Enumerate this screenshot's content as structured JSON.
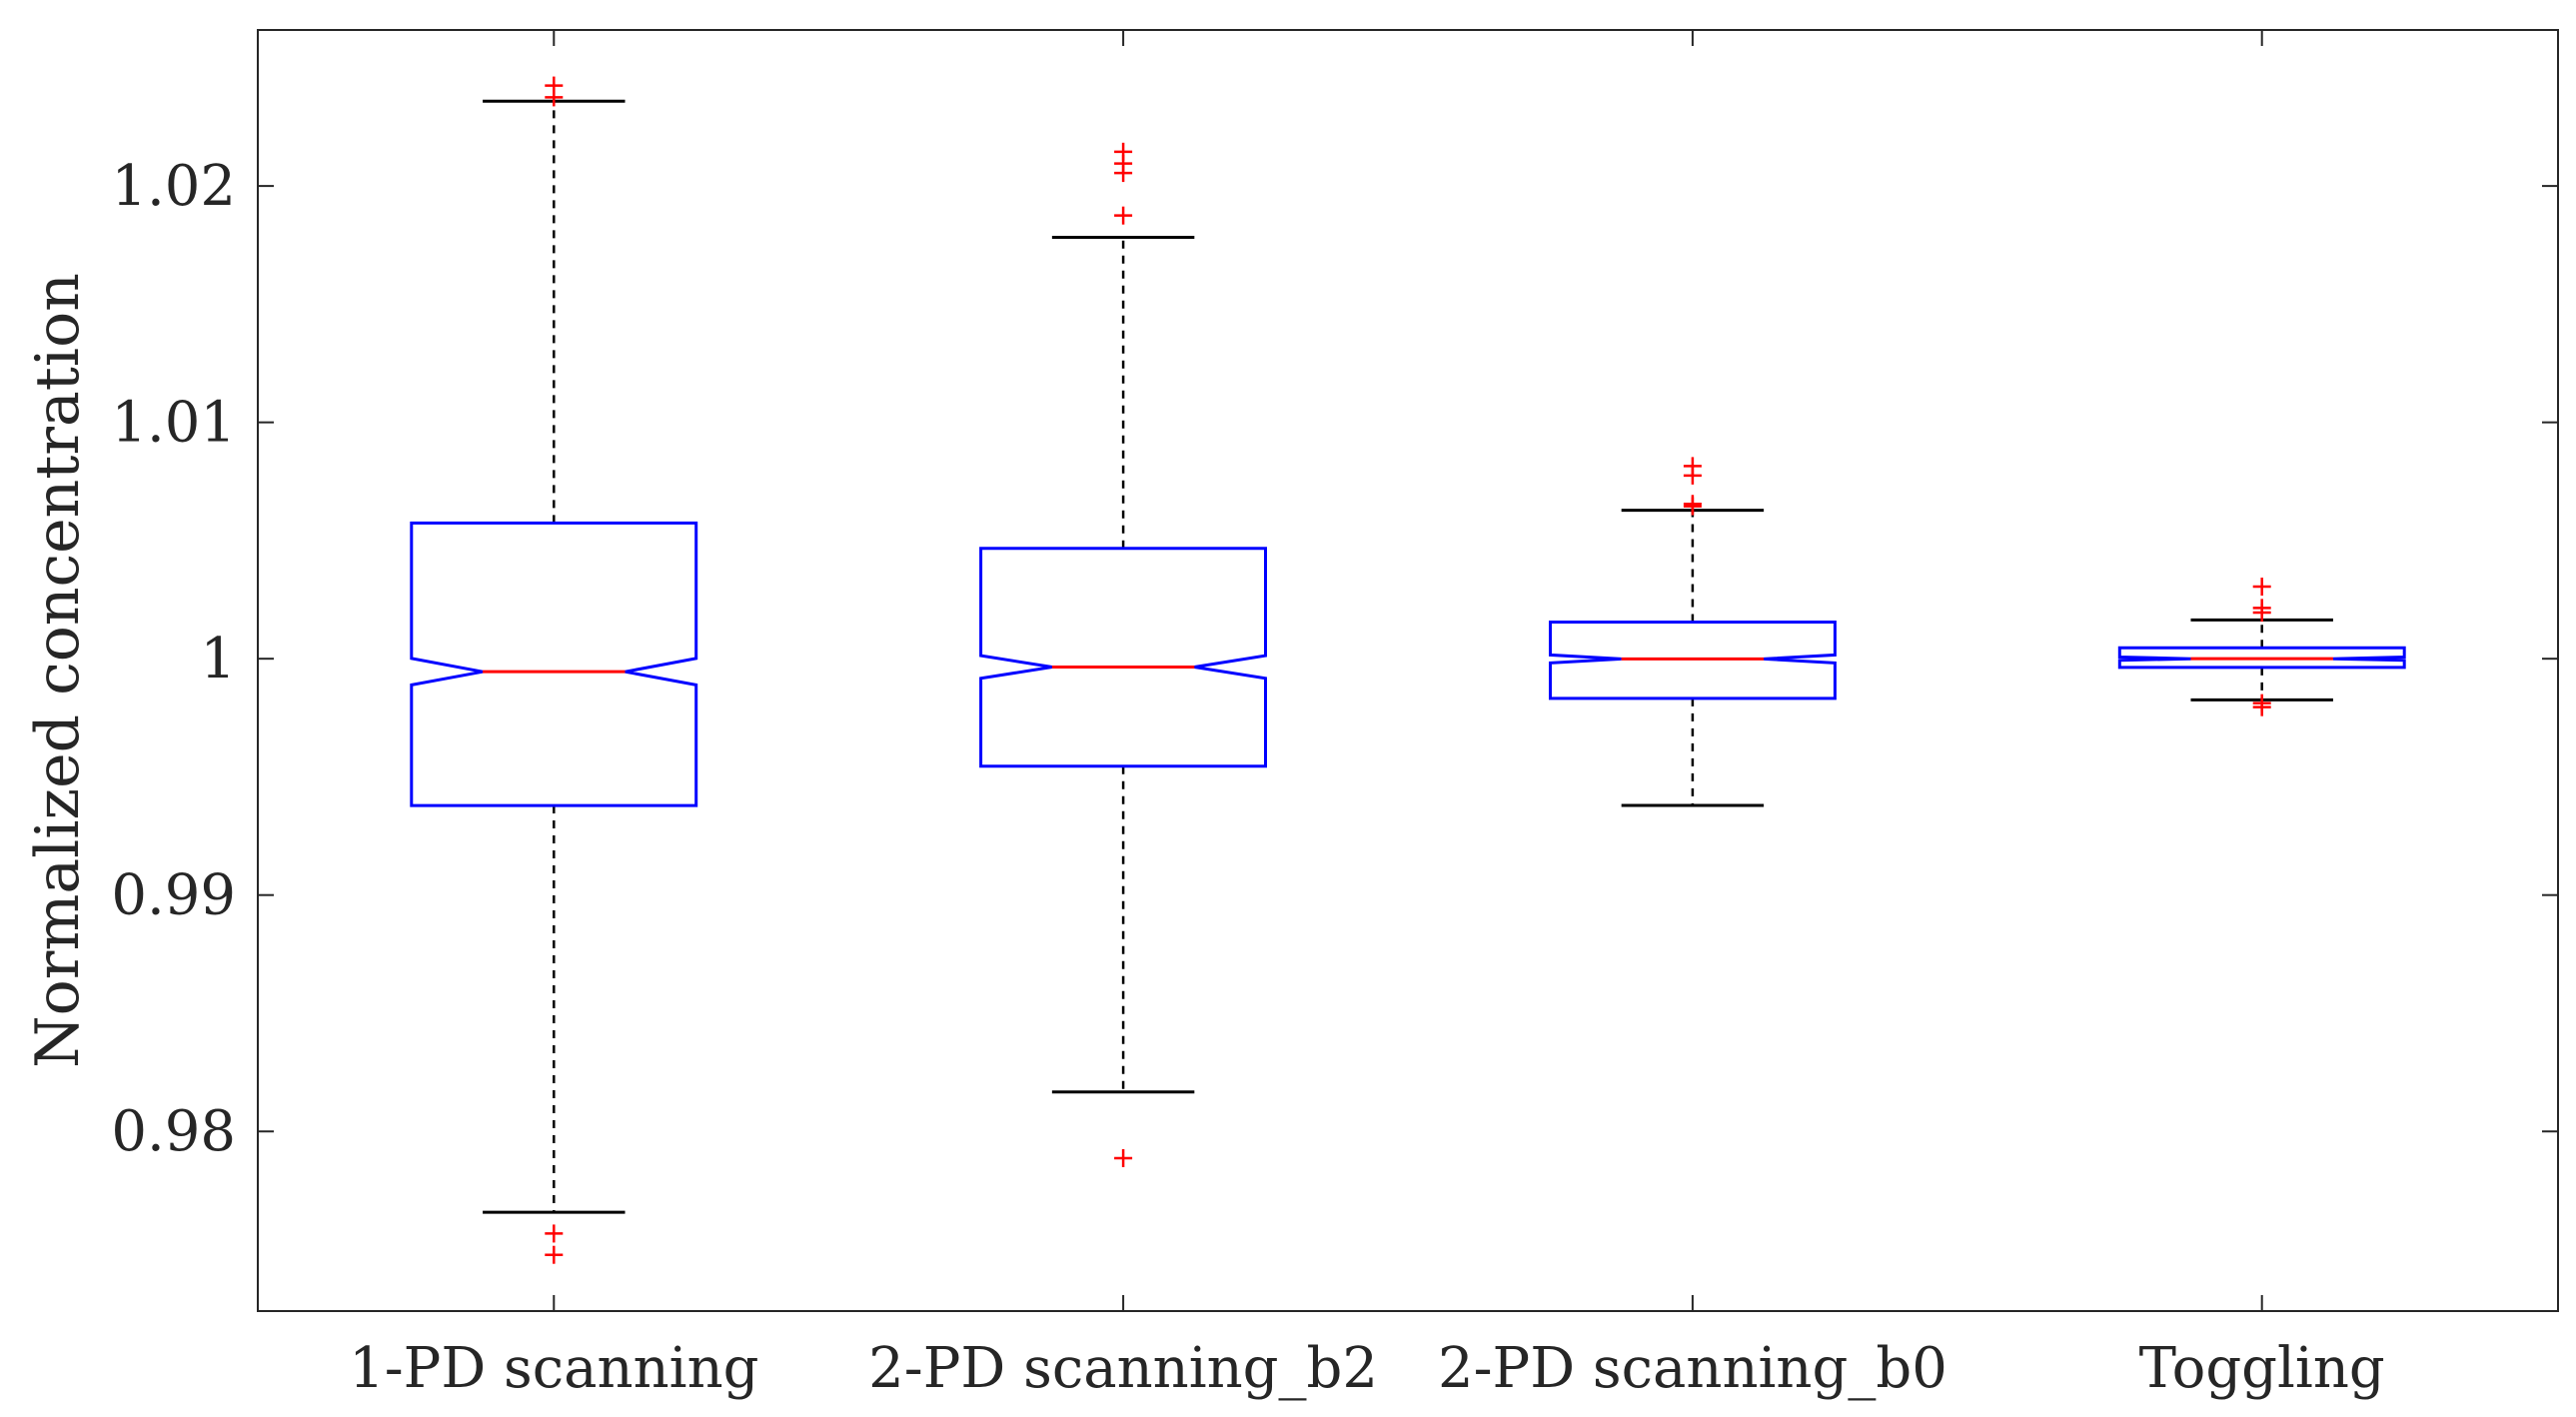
{
  "chart_data": {
    "type": "boxplot",
    "notched": true,
    "title": "",
    "xlabel": "",
    "ylabel": "Normalized concentration",
    "ylim": [
      0.9724,
      1.0266
    ],
    "yticks": [
      0.98,
      0.99,
      1,
      1.01,
      1.02
    ],
    "ytick_labels": [
      "0.98",
      "0.99",
      "1",
      "1.01",
      "1.02"
    ],
    "grid": false,
    "legend": "none",
    "colors": {
      "box": "#0000ff",
      "median": "#ff0000",
      "whisker": "#000000",
      "outlier": "#ff0000",
      "axis": "#262626"
    },
    "categories": [
      "1-PD scanning",
      "2-PD scanning_b2",
      "2-PD scanning_b0",
      "Toggling"
    ],
    "boxes": [
      {
        "q1": 0.99379,
        "median": 0.99945,
        "q3": 1.00574,
        "whisker_low": 0.97658,
        "whisker_high": 1.02359,
        "notch_low": 0.99889,
        "notch_high": 1.00001,
        "outliers": [
          1.02425,
          1.02375,
          0.97568,
          0.97478
        ]
      },
      {
        "q1": 0.99545,
        "median": 0.99965,
        "q3": 1.00467,
        "whisker_low": 0.98167,
        "whisker_high": 1.01783,
        "notch_low": 0.99917,
        "notch_high": 1.00013,
        "outliers": [
          1.02145,
          1.02095,
          1.02055,
          1.01875,
          0.97887
        ]
      },
      {
        "q1": 0.99832,
        "median": 0.99999,
        "q3": 1.00155,
        "whisker_low": 0.99379,
        "whisker_high": 1.00628,
        "notch_low": 0.99982,
        "notch_high": 1.00016,
        "outliers": [
          1.00815,
          1.00775,
          1.00655,
          1.00645
        ]
      },
      {
        "q1": 0.99963,
        "median": 1.0,
        "q3": 1.00046,
        "whisker_low": 0.99826,
        "whisker_high": 1.00164,
        "notch_low": 0.99993,
        "notch_high": 1.00007,
        "outliers": [
          1.00305,
          1.00215,
          1.00195,
          0.99812,
          0.99795
        ]
      }
    ]
  }
}
